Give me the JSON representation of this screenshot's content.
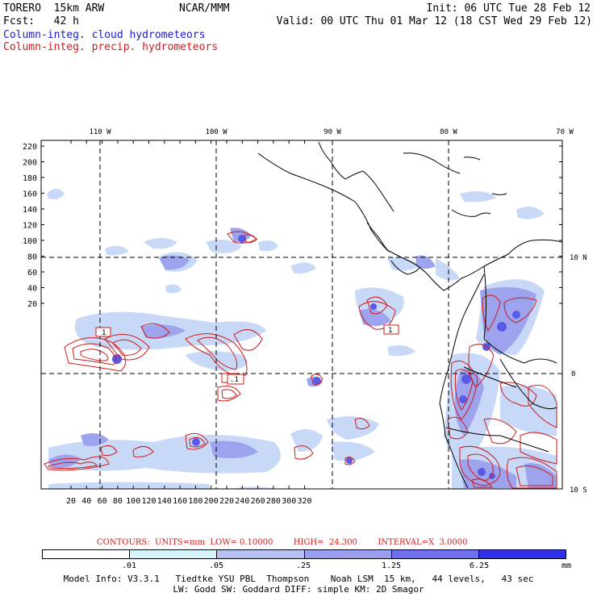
{
  "header": {
    "model": "TORERO  15km ARW",
    "org": "NCAR/MMM",
    "init": "Init: 06 UTC Tue 28 Feb 12",
    "fcst": "Fcst:   42 h",
    "valid": "Valid: 00 UTC Thu 01 Mar 12 (18 CST Wed 29 Feb 12)",
    "field1": "Column-integ. cloud hydrometeors",
    "field2": "Column-integ. precip. hydrometeors"
  },
  "map": {
    "lon_labels": [
      "110 W",
      "100 W",
      "90 W",
      "80 W",
      "70 W"
    ],
    "lat_labels": [
      "10 N",
      "0",
      "10 S"
    ],
    "y_ticks": [
      "220",
      "200",
      "180",
      "160",
      "140",
      "120",
      "100",
      "80",
      "60",
      "40",
      "20"
    ],
    "x_ticks": [
      "20",
      "40",
      "60",
      "80",
      "100",
      "120",
      "140",
      "160",
      "180",
      "200",
      "220",
      "240",
      "260",
      "280",
      "300",
      "320"
    ],
    "contour_box_labels": [
      "1",
      "1",
      ".1",
      "1"
    ]
  },
  "contours": {
    "info": "CONTOURS:  UNITS=mm  LOW= 0.10000        HIGH=  24.300        INTERVAL=X  3.0000"
  },
  "colorbar": {
    "labels": [
      ".01",
      ".05",
      ".25",
      "1.25",
      "6.25",
      "mm"
    ],
    "colors": [
      "#ffffff",
      "#d6f4fa",
      "#b6c2f4",
      "#9c9ef0",
      "#6f6ff0",
      "#3030e8"
    ]
  },
  "model_info": {
    "line1": "Model Info: V3.3.1   Tiedtke YSU PBL  Thompson    Noah LSM  15 km,   44 levels,   43 sec",
    "line2": "LW: Godd SW: Goddard DIFF: simple KM: 2D Smagor"
  }
}
